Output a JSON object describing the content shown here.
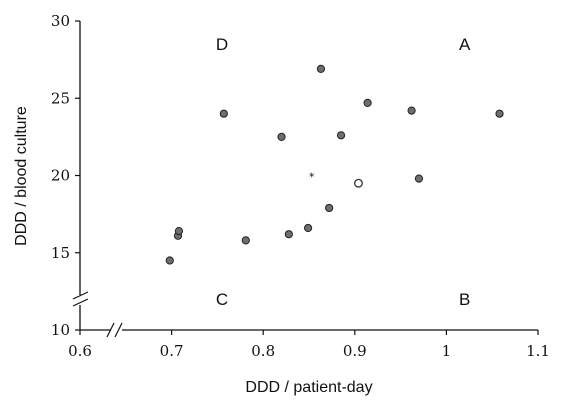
{
  "chart_data": {
    "type": "scatter",
    "xlabel": "DDD / patient-day",
    "ylabel": "DDD / blood culture",
    "xlim": [
      0.6,
      1.1
    ],
    "ylim": [
      10,
      30
    ],
    "x_ticks": [
      "0.6",
      "0.7",
      "0.8",
      "0.9",
      "1",
      "1.1"
    ],
    "y_ticks": [
      "10",
      "15",
      "20",
      "25",
      "30"
    ],
    "axis_breaks": [
      "x",
      "y"
    ],
    "grid": false,
    "quadrant_labels": [
      {
        "text": "A",
        "x": 1.02,
        "y": 28.5
      },
      {
        "text": "B",
        "x": 1.02,
        "y": 12.0
      },
      {
        "text": "C",
        "x": 0.755,
        "y": 12.0
      },
      {
        "text": "D",
        "x": 0.755,
        "y": 28.5
      }
    ],
    "series": [
      {
        "marker": "filled-circle",
        "points": [
          {
            "x": 0.698,
            "y": 14.5
          },
          {
            "x": 0.707,
            "y": 16.1
          },
          {
            "x": 0.708,
            "y": 16.4
          },
          {
            "x": 0.757,
            "y": 24.0
          },
          {
            "x": 0.781,
            "y": 15.8
          },
          {
            "x": 0.82,
            "y": 22.5
          },
          {
            "x": 0.828,
            "y": 16.2
          },
          {
            "x": 0.849,
            "y": 16.6
          },
          {
            "x": 0.863,
            "y": 26.9
          },
          {
            "x": 0.872,
            "y": 17.9
          },
          {
            "x": 0.885,
            "y": 22.6
          },
          {
            "x": 0.914,
            "y": 24.7
          },
          {
            "x": 0.962,
            "y": 24.2
          },
          {
            "x": 0.97,
            "y": 19.8
          },
          {
            "x": 1.058,
            "y": 24.0
          }
        ]
      },
      {
        "marker": "open-circle",
        "points": [
          {
            "x": 0.904,
            "y": 19.5
          }
        ]
      },
      {
        "marker": "star",
        "points": [
          {
            "x": 0.853,
            "y": 20.0
          }
        ]
      }
    ],
    "colors": {
      "axis": "#111111",
      "marker_fill": "#6e6e6e",
      "marker_edge": "#222222"
    }
  }
}
